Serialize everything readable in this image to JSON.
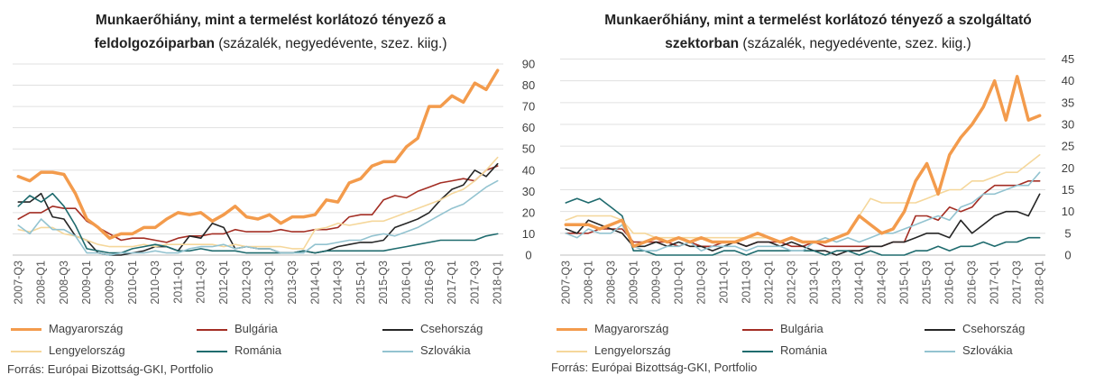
{
  "colors": {
    "Magyarország": "#F39B4C",
    "Bulgária": "#A32E24",
    "Csehország": "#262626",
    "Lengyelország": "#F5D79B",
    "Románia": "#1F6B6E",
    "Szlovákia": "#93C3D0"
  },
  "charts": [
    {
      "title_bold_1": "Munkaerőhiány, mint a termelést korlátozó tényező  a",
      "title_bold_2": "feldolgozóiparban",
      "title_normal_2": " (százalék, negyedévente, szez. kiig.)",
      "source": "Forrás: Európai Bizottság-GKI, Portfolio"
    },
    {
      "title_bold_1": "Munkaerőhiány, mint a termelést korlátozó tényező  a szolgáltató",
      "title_bold_2": "szektorban",
      "title_normal_2": " (százalék, negyedévente, szez. kiig.)",
      "source": "Forrás: Európai Bizottság-GKI, Portfolio"
    }
  ],
  "chart_data": [
    {
      "type": "line",
      "x": [
        "2007-Q3",
        "2007-Q4",
        "2008-Q1",
        "2008-Q2",
        "2008-Q3",
        "2008-Q4",
        "2009-Q1",
        "2009-Q2",
        "2009-Q3",
        "2009-Q4",
        "2010-Q1",
        "2010-Q2",
        "2010-Q3",
        "2010-Q4",
        "2011-Q1",
        "2011-Q2",
        "2011-Q3",
        "2011-Q4",
        "2012-Q1",
        "2012-Q2",
        "2012-Q3",
        "2012-Q4",
        "2013-Q1",
        "2013-Q2",
        "2013-Q3",
        "2013-Q4",
        "2014-Q1",
        "2014-Q2",
        "2014-Q3",
        "2014-Q4",
        "2015-Q1",
        "2015-Q2",
        "2015-Q3",
        "2015-Q4",
        "2016-Q1",
        "2016-Q2",
        "2016-Q3",
        "2016-Q4",
        "2017-Q1",
        "2017-Q2",
        "2017-Q3",
        "2017-Q4",
        "2018-Q1"
      ],
      "x_ticks": [
        "2007-Q3",
        "2008-Q1",
        "2008-Q3",
        "2009-Q1",
        "2009-Q3",
        "2010-Q1",
        "2010-Q3",
        "2011-Q1",
        "2011-Q3",
        "2012-Q1",
        "2012-Q3",
        "2013-Q1",
        "2013-Q3",
        "2014-Q1",
        "2014-Q3",
        "2015-Q1",
        "2015-Q3",
        "2016-Q1",
        "2016-Q3",
        "2017-Q1",
        "2017-Q3",
        "2018-Q1"
      ],
      "y_ticks": [
        "0",
        "10",
        "20",
        "30",
        "40",
        "50",
        "60",
        "70",
        "80",
        "90"
      ],
      "ylim": [
        0,
        90
      ],
      "y_axis_side": "right",
      "legend_position": "bottom",
      "series": [
        {
          "name": "Magyarország",
          "values": [
            37,
            35,
            39,
            39,
            38,
            29,
            17,
            13,
            8,
            10,
            10,
            13,
            13,
            17,
            20,
            19,
            20,
            16,
            19,
            23,
            18,
            17,
            19,
            15,
            18,
            18,
            19,
            26,
            25,
            34,
            36,
            42,
            44,
            44,
            51,
            55,
            70,
            70,
            75,
            72,
            81,
            78,
            87
          ],
          "width": 3.5
        },
        {
          "name": "Bulgária",
          "values": [
            17,
            20,
            20,
            23,
            22,
            22,
            16,
            13,
            10,
            7,
            8,
            8,
            7,
            6,
            8,
            9,
            9,
            10,
            10,
            12,
            11,
            11,
            11,
            12,
            11,
            11,
            12,
            12,
            13,
            18,
            19,
            19,
            26,
            28,
            27,
            30,
            32,
            34,
            35,
            36,
            35,
            40,
            42
          ],
          "width": 1.6
        },
        {
          "name": "Csehország",
          "values": [
            25,
            25,
            29,
            18,
            17,
            9,
            7,
            1,
            0,
            0,
            1,
            2,
            4,
            4,
            2,
            9,
            8,
            15,
            13,
            3,
            4,
            3,
            3,
            1,
            1,
            2,
            1,
            2,
            4,
            5,
            6,
            6,
            7,
            13,
            15,
            17,
            20,
            26,
            31,
            33,
            40,
            37,
            43
          ],
          "width": 1.6
        },
        {
          "name": "Lengyelország",
          "values": [
            12,
            11,
            13,
            13,
            10,
            9,
            7,
            5,
            4,
            4,
            4,
            5,
            4,
            5,
            5,
            5,
            5,
            5,
            4,
            5,
            4,
            4,
            4,
            4,
            3,
            3,
            12,
            13,
            15,
            14,
            15,
            16,
            16,
            18,
            20,
            22,
            24,
            26,
            29,
            31,
            35,
            40,
            46
          ],
          "width": 1.6
        },
        {
          "name": "Románia",
          "values": [
            23,
            28,
            25,
            29,
            23,
            14,
            3,
            2,
            1,
            1,
            3,
            4,
            5,
            4,
            2,
            2,
            3,
            2,
            2,
            2,
            1,
            1,
            1,
            1,
            1,
            2,
            1,
            2,
            2,
            2,
            2,
            2,
            2,
            3,
            4,
            5,
            6,
            7,
            7,
            7,
            7,
            9,
            10
          ],
          "width": 1.6
        },
        {
          "name": "Szlovákia",
          "values": [
            14,
            10,
            17,
            12,
            12,
            9,
            1,
            1,
            0,
            1,
            1,
            1,
            2,
            1,
            1,
            3,
            4,
            4,
            5,
            3,
            4,
            3,
            3,
            1,
            1,
            1,
            5,
            5,
            6,
            7,
            7,
            9,
            10,
            9,
            11,
            13,
            16,
            19,
            22,
            24,
            28,
            32,
            35
          ],
          "width": 1.6
        }
      ]
    },
    {
      "type": "line",
      "x": [
        "2007-Q3",
        "2007-Q4",
        "2008-Q1",
        "2008-Q2",
        "2008-Q3",
        "2008-Q4",
        "2009-Q1",
        "2009-Q2",
        "2009-Q3",
        "2009-Q4",
        "2010-Q1",
        "2010-Q2",
        "2010-Q3",
        "2010-Q4",
        "2011-Q1",
        "2011-Q2",
        "2011-Q3",
        "2011-Q4",
        "2012-Q1",
        "2012-Q2",
        "2012-Q3",
        "2012-Q4",
        "2013-Q1",
        "2013-Q2",
        "2013-Q3",
        "2013-Q4",
        "2014-Q1",
        "2014-Q2",
        "2014-Q3",
        "2014-Q4",
        "2015-Q1",
        "2015-Q2",
        "2015-Q3",
        "2015-Q4",
        "2016-Q1",
        "2016-Q2",
        "2016-Q3",
        "2016-Q4",
        "2017-Q1",
        "2017-Q2",
        "2017-Q3",
        "2017-Q4",
        "2018-Q1"
      ],
      "x_ticks": [
        "2007-Q3",
        "2008-Q1",
        "2008-Q3",
        "2009-Q1",
        "2009-Q3",
        "2010-Q1",
        "2010-Q3",
        "2011-Q1",
        "2011-Q3",
        "2012-Q1",
        "2012-Q3",
        "2013-Q1",
        "2013-Q3",
        "2014-Q1",
        "2014-Q3",
        "2015-Q1",
        "2015-Q3",
        "2016-Q1",
        "2016-Q3",
        "2017-Q1",
        "2017-Q3",
        "2018-Q1"
      ],
      "y_ticks": [
        "0",
        "5",
        "10",
        "15",
        "20",
        "25",
        "30",
        "35",
        "40",
        "45"
      ],
      "ylim": [
        0,
        45
      ],
      "y_axis_side": "right",
      "legend_position": "bottom",
      "series": [
        {
          "name": "Magyarország",
          "values": [
            7,
            7,
            7,
            6,
            7,
            8,
            2,
            3,
            4,
            3,
            4,
            3,
            4,
            3,
            3,
            3,
            4,
            5,
            4,
            3,
            4,
            3,
            3,
            3,
            4,
            5,
            9,
            7,
            5,
            6,
            10,
            17,
            21,
            14,
            23,
            27,
            30,
            34,
            40,
            31,
            41,
            31,
            32
          ],
          "width": 3.5
        },
        {
          "name": "Bulgária",
          "values": [
            5,
            5,
            5,
            6,
            6,
            6,
            3,
            3,
            3,
            3,
            2,
            3,
            2,
            2,
            3,
            3,
            2,
            3,
            3,
            3,
            2,
            2,
            3,
            2,
            2,
            2,
            2,
            2,
            2,
            3,
            3,
            9,
            9,
            8,
            11,
            10,
            11,
            14,
            16,
            16,
            16,
            17,
            17
          ],
          "width": 1.6
        },
        {
          "name": "Csehország",
          "values": [
            6,
            5,
            8,
            7,
            6,
            5,
            2,
            2,
            3,
            2,
            3,
            2,
            2,
            1,
            2,
            3,
            2,
            3,
            3,
            2,
            3,
            2,
            1,
            1,
            0,
            1,
            1,
            2,
            2,
            3,
            3,
            4,
            5,
            5,
            4,
            8,
            5,
            7,
            9,
            10,
            10,
            9,
            14
          ],
          "width": 1.6
        },
        {
          "name": "Lengyelország",
          "values": [
            8,
            9,
            9,
            9,
            9,
            8,
            5,
            5,
            4,
            4,
            4,
            4,
            4,
            4,
            4,
            4,
            4,
            4,
            4,
            3,
            4,
            3,
            3,
            3,
            4,
            5,
            9,
            13,
            12,
            12,
            12,
            12,
            13,
            14,
            15,
            15,
            17,
            17,
            18,
            19,
            19,
            21,
            23
          ],
          "width": 1.6
        },
        {
          "name": "Románia",
          "values": [
            12,
            13,
            12,
            13,
            11,
            9,
            1,
            1,
            0,
            0,
            0,
            0,
            0,
            0,
            1,
            1,
            0,
            1,
            1,
            1,
            1,
            1,
            1,
            0,
            1,
            1,
            0,
            1,
            0,
            0,
            0,
            1,
            1,
            2,
            1,
            2,
            2,
            3,
            2,
            3,
            3,
            4,
            4
          ],
          "width": 1.6
        },
        {
          "name": "Szlovákia",
          "values": [
            5,
            4,
            6,
            5,
            5,
            7,
            2,
            1,
            1,
            2,
            2,
            3,
            1,
            2,
            2,
            2,
            1,
            2,
            2,
            2,
            1,
            1,
            3,
            4,
            3,
            4,
            3,
            4,
            5,
            5,
            6,
            7,
            8,
            9,
            8,
            11,
            12,
            14,
            14,
            15,
            16,
            16,
            19
          ],
          "width": 1.6
        }
      ]
    }
  ]
}
